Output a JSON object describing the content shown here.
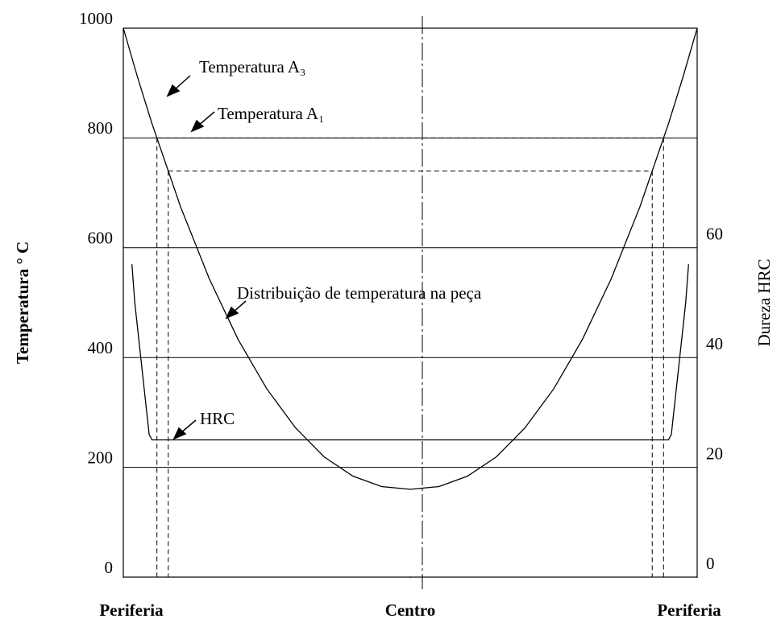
{
  "chart_data": {
    "type": "line",
    "ylabel": "Temperatura   ° C",
    "y2label": "Dureza   HRC",
    "xlim": [
      0,
      100
    ],
    "xticks": [
      {
        "value": 0,
        "label": "Periferia"
      },
      {
        "value": 50,
        "label": "Centro"
      },
      {
        "value": 100,
        "label": "Periferia"
      }
    ],
    "ylim": [
      0,
      1000
    ],
    "yticks": [
      0,
      200,
      400,
      600,
      800,
      1000
    ],
    "y2lim": [
      0,
      100
    ],
    "y2ticks": [
      0,
      20,
      40,
      60
    ],
    "grid": true,
    "hlines": [
      {
        "value": 800,
        "label": "Temperatura A₃"
      },
      {
        "value": 740,
        "label": "Temperatura A₁"
      }
    ],
    "series": [
      {
        "name": "Distribuição de temperatura na peça",
        "color": "#000000",
        "x": [
          0,
          2.5,
          5,
          10,
          15,
          20,
          25,
          30,
          35,
          40,
          45,
          50,
          55,
          60,
          65,
          70,
          75,
          80,
          85,
          90,
          95,
          97.5,
          100
        ],
        "values": [
          1000,
          910,
          826,
          674,
          543,
          433,
          343,
          272,
          219,
          184,
          165,
          160,
          165,
          184,
          219,
          272,
          343,
          433,
          543,
          674,
          826,
          910,
          1000
        ]
      },
      {
        "name": "HRC",
        "color": "#000000",
        "axis": "y2",
        "x": [
          1.5,
          2,
          4.5,
          5,
          95,
          95.5,
          98,
          98.5
        ],
        "values": [
          57,
          50,
          26,
          25,
          25,
          26,
          50,
          57
        ]
      }
    ]
  }
}
